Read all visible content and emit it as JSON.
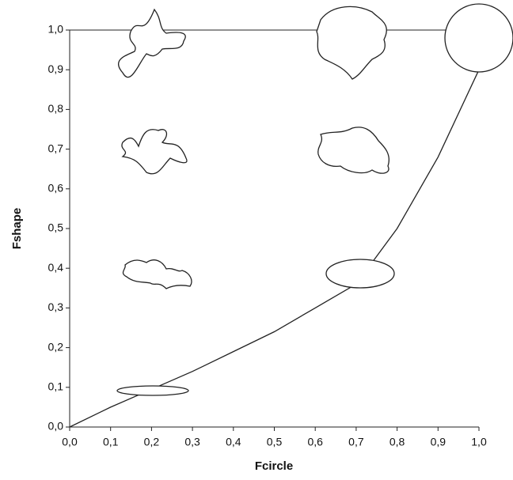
{
  "chart_data": {
    "type": "line",
    "x_label": "Fcircle",
    "y_label": "Fshape",
    "x": [
      0,
      0.1,
      0.2,
      0.3,
      0.4,
      0.5,
      0.6,
      0.7,
      0.8,
      0.9,
      1.0
    ],
    "values": [
      0,
      0.05,
      0.095,
      0.14,
      0.19,
      0.24,
      0.3,
      0.36,
      0.5,
      0.68,
      0.9
    ],
    "color": "#222",
    "xlim": [
      0,
      1
    ],
    "ylim": [
      0,
      1
    ],
    "xticks": [
      {
        "value": 0,
        "label": "0,0"
      },
      {
        "value": 0.1,
        "label": "0,1"
      },
      {
        "value": 0.2,
        "label": "0,2"
      },
      {
        "value": 0.3,
        "label": "0,3"
      },
      {
        "value": 0.4,
        "label": "0,4"
      },
      {
        "value": 0.5,
        "label": "0,5"
      },
      {
        "value": 0.6,
        "label": "0,6"
      },
      {
        "value": 0.7,
        "label": "0,7"
      },
      {
        "value": 0.8,
        "label": "0,8"
      },
      {
        "value": 0.9,
        "label": "0,9"
      },
      {
        "value": 1,
        "label": "1,0"
      }
    ],
    "yticks": [
      {
        "value": 0,
        "label": "0,0"
      },
      {
        "value": 0.1,
        "label": "0,1"
      },
      {
        "value": 0.2,
        "label": "0,2"
      },
      {
        "value": 0.3,
        "label": "0,3"
      },
      {
        "value": 0.4,
        "label": "0,4"
      },
      {
        "value": 0.5,
        "label": "0,5"
      },
      {
        "value": 0.6,
        "label": "0,6"
      },
      {
        "value": 0.7,
        "label": "0,7"
      },
      {
        "value": 0.8,
        "label": "0,8"
      },
      {
        "value": 0.9,
        "label": "0,9"
      },
      {
        "value": 1,
        "label": "1,0"
      }
    ]
  }
}
